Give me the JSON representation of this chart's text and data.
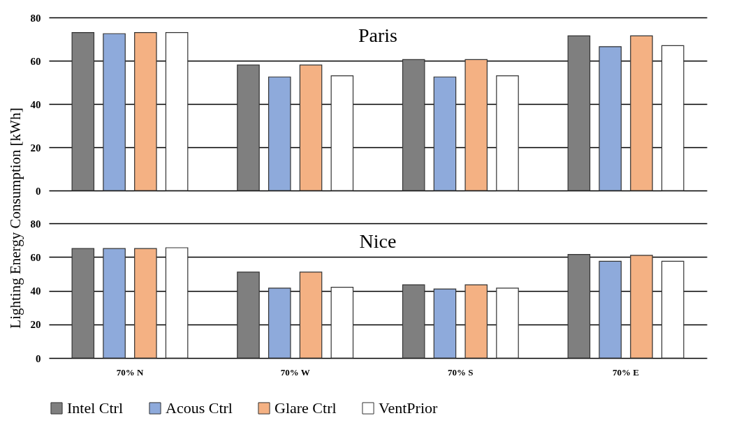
{
  "chart_data": [
    {
      "type": "bar",
      "title": "Paris",
      "ylabel": "Lighting Energy Consumption [kWh]",
      "categories": [
        null,
        null,
        null,
        null
      ],
      "series": [
        {
          "color": "#7f7f7f",
          "values": [
            73,
            58,
            60.5,
            71.5
          ]
        },
        {
          "color": "#8eaadb",
          "values": [
            72.5,
            52.5,
            52.5,
            66.5
          ]
        },
        {
          "color": "#f4b183",
          "values": [
            73,
            58,
            60.5,
            71.5
          ]
        },
        {
          "color": "#ffffff",
          "values": [
            73,
            53,
            53,
            67
          ]
        }
      ],
      "ylim": [
        0,
        80
      ],
      "yticks": [
        0,
        20,
        40,
        60,
        80
      ],
      "grid": "y",
      "legend": false,
      "tick_labels": "y"
    },
    {
      "type": "bar",
      "title": "Nice",
      "categories": [
        "70% N",
        "70% W",
        "70% S",
        "70% E"
      ],
      "series": [
        {
          "name": "Intel Ctrl",
          "color": "#7f7f7f",
          "values": [
            65,
            51,
            43.5,
            61.5
          ]
        },
        {
          "name": "Acous Ctrl",
          "color": "#8eaadb",
          "values": [
            65,
            41.5,
            41,
            57.5
          ]
        },
        {
          "name": "Glare Ctrl",
          "color": "#f4b183",
          "values": [
            65,
            51,
            43.5,
            61
          ]
        },
        {
          "name": "VentPrior",
          "color": "#ffffff",
          "values": [
            65.5,
            42,
            41.5,
            57.5
          ]
        }
      ],
      "ylim": [
        0,
        80
      ],
      "yticks": [
        0,
        20,
        40,
        60,
        80
      ],
      "grid": "y",
      "legend": "bottom"
    }
  ]
}
